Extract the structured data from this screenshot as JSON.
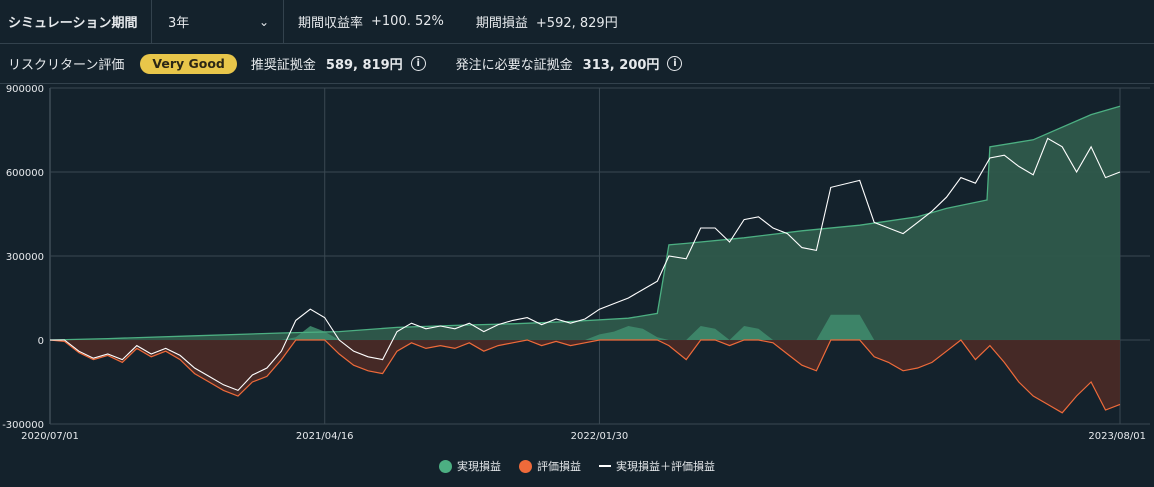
{
  "header": {
    "sim_period_label": "シミュレーション期間",
    "sim_period_value": "3年",
    "return_rate_label": "期間収益率",
    "return_rate_value": "+100. 52%",
    "pnl_label": "期間損益",
    "pnl_value": "+592, 829円"
  },
  "risk": {
    "label": "リスクリターン評価",
    "badge": "Very Good",
    "recommended_label": "推奨証拠金",
    "recommended_value": "589, 819円",
    "required_label": "発注に必要な証拠金",
    "required_value": "313, 200円",
    "info_glyph": "i"
  },
  "colors": {
    "realized": "#4caf82",
    "unrealized": "#ee6a3a",
    "total": "#ffffff",
    "badge": "#e8c64a"
  },
  "chart_data": {
    "type": "area",
    "x_tick_labels": [
      "2020/07/01",
      "2021/04/16",
      "2022/01/30",
      "2023/08/01"
    ],
    "y_tick_labels": [
      "900000",
      "600000",
      "300000",
      "0",
      "-300000"
    ],
    "ylim": [
      -300000,
      900000
    ],
    "x_range_months": [
      0,
      37
    ],
    "grid": true,
    "legend_position": "bottom-center",
    "series": [
      {
        "name": "実現損益",
        "color": "#4caf82",
        "points": [
          [
            0,
            0
          ],
          [
            2,
            5000
          ],
          [
            5,
            15000
          ],
          [
            8,
            25000
          ],
          [
            10,
            30000
          ],
          [
            12,
            45000
          ],
          [
            14,
            52000
          ],
          [
            16,
            58000
          ],
          [
            18,
            66000
          ],
          [
            20,
            78000
          ],
          [
            21,
            95000
          ],
          [
            21.4,
            340000
          ],
          [
            22,
            345000
          ],
          [
            24,
            365000
          ],
          [
            26,
            390000
          ],
          [
            28,
            410000
          ],
          [
            30,
            440000
          ],
          [
            31,
            470000
          ],
          [
            32.4,
            500000
          ],
          [
            32.5,
            690000
          ],
          [
            34,
            715000
          ],
          [
            36,
            805000
          ],
          [
            37,
            835000
          ]
        ]
      },
      {
        "name": "評価損益",
        "color": "#ee6a3a",
        "points": [
          [
            0,
            0
          ],
          [
            0.5,
            -5000
          ],
          [
            1,
            -45000
          ],
          [
            1.5,
            -70000
          ],
          [
            2,
            -55000
          ],
          [
            2.5,
            -80000
          ],
          [
            3,
            -30000
          ],
          [
            3.5,
            -60000
          ],
          [
            4,
            -40000
          ],
          [
            4.5,
            -70000
          ],
          [
            5,
            -120000
          ],
          [
            5.5,
            -150000
          ],
          [
            6,
            -180000
          ],
          [
            6.5,
            -200000
          ],
          [
            7,
            -150000
          ],
          [
            7.5,
            -130000
          ],
          [
            8,
            -70000
          ],
          [
            8.5,
            10000
          ],
          [
            9,
            50000
          ],
          [
            9.5,
            30000
          ],
          [
            10,
            -50000
          ],
          [
            10.5,
            -90000
          ],
          [
            11,
            -110000
          ],
          [
            11.5,
            -120000
          ],
          [
            12,
            -40000
          ],
          [
            12.5,
            -10000
          ],
          [
            13,
            -30000
          ],
          [
            13.5,
            -20000
          ],
          [
            14,
            -30000
          ],
          [
            14.5,
            -10000
          ],
          [
            15,
            -40000
          ],
          [
            15.5,
            -20000
          ],
          [
            16,
            -10000
          ],
          [
            16.5,
            0
          ],
          [
            17,
            -20000
          ],
          [
            17.5,
            -5000
          ],
          [
            18,
            -20000
          ],
          [
            18.5,
            -10000
          ],
          [
            19,
            20000
          ],
          [
            19.5,
            30000
          ],
          [
            20,
            50000
          ],
          [
            20.5,
            40000
          ],
          [
            21,
            10000
          ],
          [
            21.4,
            -20000
          ],
          [
            22,
            -70000
          ],
          [
            22.5,
            50000
          ],
          [
            23,
            40000
          ],
          [
            23.5,
            -20000
          ],
          [
            24,
            50000
          ],
          [
            24.5,
            40000
          ],
          [
            25,
            -10000
          ],
          [
            25.5,
            -50000
          ],
          [
            26,
            -90000
          ],
          [
            26.5,
            -110000
          ],
          [
            27,
            90000
          ],
          [
            28,
            90000
          ],
          [
            28.5,
            -60000
          ],
          [
            29,
            -80000
          ],
          [
            29.5,
            -110000
          ],
          [
            30,
            -100000
          ],
          [
            30.5,
            -80000
          ],
          [
            31,
            -40000
          ],
          [
            31.5,
            0
          ],
          [
            32,
            -70000
          ],
          [
            32.5,
            -20000
          ],
          [
            33,
            -80000
          ],
          [
            33.5,
            -150000
          ],
          [
            34,
            -200000
          ],
          [
            34.5,
            -230000
          ],
          [
            35,
            -260000
          ],
          [
            35.5,
            -200000
          ],
          [
            36,
            -150000
          ],
          [
            36.5,
            -250000
          ],
          [
            37,
            -230000
          ]
        ]
      },
      {
        "name": "実現損益＋評価損益",
        "color": "#ffffff",
        "points": [
          [
            0,
            0
          ],
          [
            0.5,
            0
          ],
          [
            1,
            -40000
          ],
          [
            1.5,
            -65000
          ],
          [
            2,
            -50000
          ],
          [
            2.5,
            -70000
          ],
          [
            3,
            -20000
          ],
          [
            3.5,
            -50000
          ],
          [
            4,
            -30000
          ],
          [
            4.5,
            -55000
          ],
          [
            5,
            -100000
          ],
          [
            5.5,
            -130000
          ],
          [
            6,
            -160000
          ],
          [
            6.5,
            -180000
          ],
          [
            7,
            -125000
          ],
          [
            7.5,
            -100000
          ],
          [
            8,
            -40000
          ],
          [
            8.5,
            70000
          ],
          [
            9,
            110000
          ],
          [
            9.5,
            80000
          ],
          [
            10,
            0
          ],
          [
            10.5,
            -40000
          ],
          [
            11,
            -60000
          ],
          [
            11.5,
            -70000
          ],
          [
            12,
            30000
          ],
          [
            12.5,
            60000
          ],
          [
            13,
            40000
          ],
          [
            13.5,
            50000
          ],
          [
            14,
            40000
          ],
          [
            14.5,
            60000
          ],
          [
            15,
            30000
          ],
          [
            15.5,
            55000
          ],
          [
            16,
            70000
          ],
          [
            16.5,
            80000
          ],
          [
            17,
            55000
          ],
          [
            17.5,
            75000
          ],
          [
            18,
            60000
          ],
          [
            18.5,
            75000
          ],
          [
            19,
            110000
          ],
          [
            19.5,
            130000
          ],
          [
            20,
            150000
          ],
          [
            20.5,
            180000
          ],
          [
            21,
            210000
          ],
          [
            21.4,
            300000
          ],
          [
            22,
            290000
          ],
          [
            22.5,
            400000
          ],
          [
            23,
            400000
          ],
          [
            23.5,
            350000
          ],
          [
            24,
            430000
          ],
          [
            24.5,
            440000
          ],
          [
            25,
            400000
          ],
          [
            25.5,
            380000
          ],
          [
            26,
            330000
          ],
          [
            26.5,
            320000
          ],
          [
            27,
            545000
          ],
          [
            28,
            570000
          ],
          [
            28.5,
            420000
          ],
          [
            29,
            400000
          ],
          [
            29.5,
            380000
          ],
          [
            30,
            420000
          ],
          [
            30.5,
            460000
          ],
          [
            31,
            510000
          ],
          [
            31.5,
            580000
          ],
          [
            32,
            560000
          ],
          [
            32.5,
            650000
          ],
          [
            33,
            660000
          ],
          [
            33.5,
            620000
          ],
          [
            34,
            590000
          ],
          [
            34.5,
            720000
          ],
          [
            35,
            690000
          ],
          [
            35.5,
            600000
          ],
          [
            36,
            690000
          ],
          [
            36.5,
            580000
          ],
          [
            37,
            600000
          ]
        ]
      }
    ]
  }
}
